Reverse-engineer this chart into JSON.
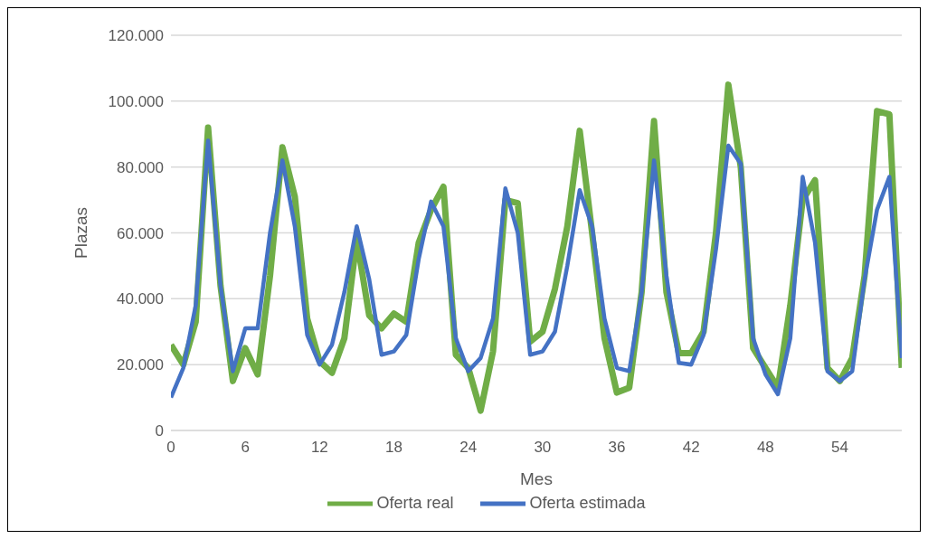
{
  "chart_data": {
    "type": "line",
    "xlabel": "Mes",
    "ylabel": "Plazas",
    "x": [
      0,
      1,
      2,
      3,
      4,
      5,
      6,
      7,
      8,
      9,
      10,
      11,
      12,
      13,
      14,
      15,
      16,
      17,
      18,
      19,
      20,
      21,
      22,
      23,
      24,
      25,
      26,
      27,
      28,
      29,
      30,
      31,
      32,
      33,
      34,
      35,
      36,
      37,
      38,
      39,
      40,
      41,
      42,
      43,
      44,
      45,
      46,
      47,
      48,
      49,
      50,
      51,
      52,
      53,
      54,
      55,
      56,
      57,
      58,
      59
    ],
    "series": [
      {
        "name": "Oferta real",
        "color": "#70ad47",
        "values": [
          26000,
          20000,
          33000,
          92000,
          44000,
          15000,
          25000,
          17000,
          47000,
          86000,
          71000,
          34000,
          21000,
          17500,
          28000,
          58000,
          35000,
          31000,
          35500,
          33000,
          57000,
          67000,
          74000,
          23000,
          19000,
          6000,
          24000,
          70000,
          69000,
          27000,
          30000,
          43000,
          62000,
          91000,
          60000,
          28000,
          11500,
          13000,
          42000,
          94000,
          42000,
          23500,
          23500,
          30000,
          60000,
          105000,
          80000,
          25000,
          19000,
          13000,
          38000,
          70000,
          76000,
          19000,
          15000,
          22000,
          47000,
          97000,
          96000,
          19000
        ]
      },
      {
        "name": "Oferta estimada",
        "color": "#4472c4",
        "values": [
          10000,
          19000,
          38000,
          88000,
          44000,
          18000,
          31000,
          31000,
          60000,
          82000,
          62000,
          29000,
          20000,
          26000,
          42000,
          62000,
          46000,
          23000,
          24000,
          29000,
          52000,
          69500,
          62000,
          28000,
          18000,
          22000,
          34000,
          73500,
          60000,
          23000,
          24000,
          30000,
          50000,
          73000,
          62000,
          34000,
          19000,
          18000,
          42000,
          82000,
          47000,
          20500,
          20000,
          29000,
          55000,
          86500,
          81000,
          28000,
          17000,
          11000,
          28000,
          77000,
          57000,
          18000,
          15000,
          18000,
          46000,
          67000,
          77000,
          22000
        ]
      }
    ],
    "xlim": [
      0,
      59
    ],
    "xticks": [
      0,
      6,
      12,
      18,
      24,
      30,
      36,
      42,
      48,
      54
    ],
    "ylim": [
      0,
      120000
    ],
    "yticks": [
      {
        "value": 0,
        "label": "0"
      },
      {
        "value": 20000,
        "label": "20.000"
      },
      {
        "value": 40000,
        "label": "40.000"
      },
      {
        "value": 60000,
        "label": "60.000"
      },
      {
        "value": 80000,
        "label": "80.000"
      },
      {
        "value": 100000,
        "label": "100.000"
      },
      {
        "value": 120000,
        "label": "120.000"
      }
    ],
    "grid": "y",
    "legend": "bottom",
    "marker": "none",
    "line_style": "solid"
  }
}
